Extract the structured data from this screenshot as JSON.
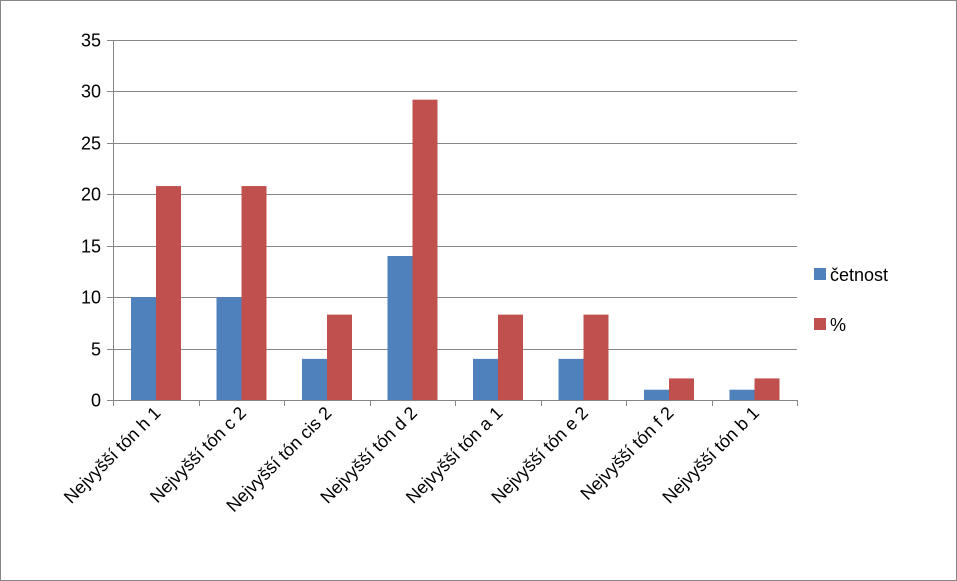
{
  "chart_data": {
    "type": "bar",
    "title": "",
    "xlabel": "",
    "ylabel": "",
    "categories": [
      "Nejvyšší tón h 1",
      "Nejvyšší tón c 2",
      "Nejvyšší tón cis 2",
      "Nejvyšší tón d 2",
      "Nejvyšší tón a 1",
      "Nejvyšší tón e 2",
      "Nejvyšší tón f 2",
      "Nejvyšší tón b 1"
    ],
    "series": [
      {
        "name": "četnost",
        "color": "#4F81BD",
        "values": [
          10,
          10,
          4,
          14,
          4,
          4,
          1,
          1
        ]
      },
      {
        "name": "%",
        "color": "#C0504D",
        "values": [
          20.8,
          20.8,
          8.3,
          29.2,
          8.3,
          8.3,
          2.1,
          2.1
        ]
      }
    ],
    "ylim": [
      0,
      35
    ],
    "yticks": [
      0,
      5,
      10,
      15,
      20,
      25,
      30,
      35
    ],
    "grid": true,
    "legend": "right"
  }
}
